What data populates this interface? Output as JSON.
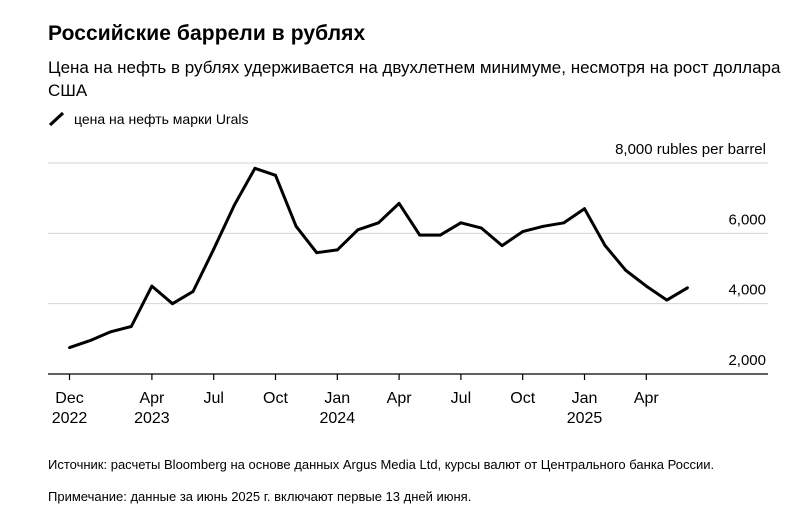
{
  "header": {
    "title": "Российские баррели в рублях",
    "subtitle": "Цена на нефть в рублях удерживается на двухлетнем минимуме, несмотря на рост доллара США"
  },
  "footer": {
    "source": "Источник: расчеты Bloomberg на основе данных Argus Media Ltd, курсы валют от Центрального банка России.",
    "note": "Примечание: данные за июнь 2025 г. включают первые 13 дней июня."
  },
  "chart_data": {
    "type": "line",
    "title": "Российские баррели в рублях",
    "subtitle": "Цена на нефть в рублях удерживается на двухлетнем минимуме, несмотря на рост доллара США",
    "ylabel": "",
    "ylim": [
      2000,
      8000
    ],
    "y_ticks": [
      {
        "value": 2000,
        "label": "2,000"
      },
      {
        "value": 4000,
        "label": "4,000"
      },
      {
        "value": 6000,
        "label": "6,000"
      },
      {
        "value": 8000,
        "label": "8,000 rubles per barrel"
      }
    ],
    "x_ticks": [
      {
        "date": "2022-12",
        "label": "Dec",
        "year": "2022"
      },
      {
        "date": "2023-04",
        "label": "Apr",
        "year": "2023"
      },
      {
        "date": "2023-07",
        "label": "Jul",
        "year": ""
      },
      {
        "date": "2023-10",
        "label": "Oct",
        "year": ""
      },
      {
        "date": "2024-01",
        "label": "Jan",
        "year": "2024"
      },
      {
        "date": "2024-04",
        "label": "Apr",
        "year": ""
      },
      {
        "date": "2024-07",
        "label": "Jul",
        "year": ""
      },
      {
        "date": "2024-10",
        "label": "Oct",
        "year": ""
      },
      {
        "date": "2025-01",
        "label": "Jan",
        "year": "2025"
      },
      {
        "date": "2025-04",
        "label": "Apr",
        "year": ""
      }
    ],
    "grid": true,
    "legend_position": "top-left",
    "color": "#000000",
    "series": [
      {
        "name": "цена на нефть марки Urals",
        "x": [
          "2022-12",
          "2023-01",
          "2023-02",
          "2023-03",
          "2023-04",
          "2023-05",
          "2023-06",
          "2023-07",
          "2023-08",
          "2023-09",
          "2023-10",
          "2023-11",
          "2023-12",
          "2024-01",
          "2024-02",
          "2024-03",
          "2024-04",
          "2024-05",
          "2024-06",
          "2024-07",
          "2024-08",
          "2024-09",
          "2024-10",
          "2024-11",
          "2024-12",
          "2025-01",
          "2025-02",
          "2025-03",
          "2025-04",
          "2025-05",
          "2025-06"
        ],
        "values": [
          2750,
          2950,
          3200,
          3350,
          4500,
          4000,
          4350,
          5550,
          6800,
          7850,
          7650,
          6200,
          5450,
          5530,
          6100,
          6300,
          6850,
          5950,
          5950,
          6300,
          6150,
          5650,
          6050,
          6200,
          6300,
          6700,
          5650,
          4950,
          4500,
          4100,
          4450
        ]
      }
    ]
  }
}
